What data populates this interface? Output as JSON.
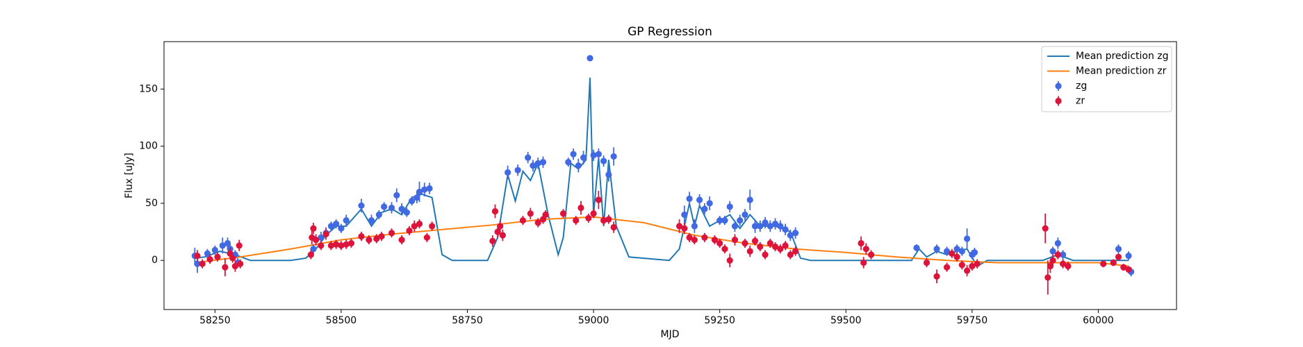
{
  "chart_data": {
    "type": "scatter",
    "title": "GP Regression",
    "xlabel": "MJD",
    "ylabel": "Flux [uJy]",
    "xlim": [
      58149,
      60155
    ],
    "ylim": [
      -43,
      191.5
    ],
    "xticks": [
      58250,
      58500,
      58750,
      59000,
      59250,
      59500,
      59750,
      60000
    ],
    "yticks": [
      0,
      50,
      100,
      150
    ],
    "legend": "upper right",
    "lines": [
      {
        "name": "Mean prediction zg",
        "color": "#1f77b4",
        "x": [
          58210,
          58230,
          58260,
          58290,
          58320,
          58400,
          58430,
          58450,
          58470,
          58490,
          58510,
          58540,
          58560,
          58580,
          58600,
          58620,
          58640,
          58660,
          58680,
          58700,
          58720,
          58790,
          58810,
          58830,
          58845,
          58860,
          58875,
          58890,
          58910,
          58930,
          58940,
          58955,
          58970,
          58985,
          58993,
          59000,
          59010,
          59020,
          59030,
          59045,
          59070,
          59150,
          59170,
          59190,
          59200,
          59210,
          59230,
          59250,
          59270,
          59290,
          59310,
          59330,
          59360,
          59390,
          59410,
          59430,
          59630,
          59645,
          59660,
          59680,
          59700,
          59720,
          59740,
          59760,
          59780,
          59890,
          59920,
          59950,
          60000,
          60060
        ],
        "values": [
          2,
          3,
          8,
          5,
          0,
          0,
          2,
          10,
          22,
          30,
          30,
          45,
          30,
          42,
          45,
          40,
          55,
          58,
          55,
          5,
          0,
          0,
          20,
          75,
          52,
          78,
          70,
          85,
          40,
          5,
          20,
          85,
          80,
          88,
          160,
          40,
          90,
          30,
          88,
          30,
          3,
          0,
          10,
          50,
          30,
          48,
          30,
          35,
          40,
          28,
          40,
          30,
          30,
          25,
          2,
          0,
          0,
          10,
          3,
          8,
          5,
          8,
          10,
          -5,
          0,
          0,
          5,
          0,
          0,
          0
        ]
      },
      {
        "name": "Mean prediction zr",
        "color": "#ff7f0e",
        "x": [
          58210,
          58300,
          58400,
          58500,
          58600,
          58700,
          58800,
          58900,
          59000,
          59100,
          59200,
          59300,
          59400,
          59500,
          59600,
          59700,
          59800,
          59900,
          60000,
          60060
        ],
        "values": [
          -2,
          3,
          10,
          18,
          23,
          27,
          31,
          36,
          38,
          33,
          22,
          15,
          10,
          7,
          3,
          0,
          -2,
          -2,
          -2,
          -5
        ]
      }
    ],
    "series": [
      {
        "name": "zg",
        "color": "#4169e1",
        "x": [
          58210,
          58215,
          58235,
          58250,
          58265,
          58275,
          58280,
          58290,
          58295,
          58445,
          58460,
          58470,
          58480,
          58490,
          58500,
          58510,
          58540,
          58560,
          58575,
          58585,
          58600,
          58610,
          58620,
          58630,
          58640,
          58650,
          58655,
          58665,
          58675,
          58830,
          58850,
          58870,
          58880,
          58890,
          58900,
          58950,
          58960,
          58970,
          58980,
          58993,
          59000,
          59010,
          59020,
          59030,
          59040,
          59180,
          59190,
          59200,
          59210,
          59220,
          59230,
          59250,
          59260,
          59270,
          59280,
          59290,
          59300,
          59310,
          59320,
          59330,
          59340,
          59350,
          59360,
          59370,
          59380,
          59390,
          59400,
          59640,
          59680,
          59700,
          59720,
          59730,
          59740,
          59750,
          59755,
          59910,
          59920,
          59930,
          60040,
          60060,
          60065
        ],
        "values": [
          4,
          -3,
          6,
          9,
          13,
          15,
          10,
          5,
          -2,
          10,
          20,
          24,
          30,
          32,
          28,
          35,
          48,
          35,
          40,
          47,
          46,
          57,
          45,
          42,
          52,
          55,
          60,
          62,
          63,
          77,
          79,
          90,
          83,
          85,
          86,
          86,
          93,
          83,
          90,
          177,
          92,
          93,
          87,
          75,
          91,
          40,
          54,
          30,
          53,
          45,
          50,
          35,
          35,
          47,
          30,
          35,
          40,
          53,
          30,
          30,
          33,
          30,
          32,
          30,
          27,
          22,
          24,
          11,
          10,
          8,
          10,
          8,
          19,
          5,
          7,
          8,
          15,
          5,
          10,
          4,
          -10
        ],
        "errors": [
          7,
          8,
          4,
          4,
          7,
          5,
          5,
          4,
          4,
          4,
          5,
          5,
          4,
          4,
          4,
          5,
          6,
          5,
          4,
          4,
          5,
          6,
          5,
          4,
          4,
          5,
          9,
          6,
          5,
          6,
          5,
          5,
          5,
          5,
          5,
          4,
          5,
          6,
          6,
          2,
          5,
          5,
          5,
          6,
          8,
          8,
          6,
          6,
          5,
          5,
          6,
          4,
          4,
          5,
          5,
          5,
          5,
          9,
          6,
          5,
          5,
          5,
          5,
          5,
          5,
          5,
          5,
          3,
          4,
          4,
          4,
          4,
          9,
          4,
          4,
          4,
          5,
          4,
          4,
          4,
          4
        ]
      },
      {
        "name": "zr",
        "color": "#dc143c",
        "x": [
          58215,
          58225,
          58240,
          58255,
          58270,
          58280,
          58285,
          58290,
          58298,
          58300,
          58440,
          58442,
          58445,
          58450,
          58460,
          58470,
          58480,
          58490,
          58500,
          58510,
          58520,
          58540,
          58555,
          58570,
          58580,
          58600,
          58620,
          58635,
          58645,
          58655,
          58670,
          58680,
          58800,
          58805,
          58810,
          58815,
          58820,
          58860,
          58875,
          58890,
          58900,
          58905,
          58940,
          58965,
          58975,
          58990,
          59000,
          59010,
          59020,
          59030,
          59040,
          59170,
          59180,
          59190,
          59200,
          59220,
          59240,
          59250,
          59260,
          59270,
          59280,
          59300,
          59310,
          59320,
          59330,
          59340,
          59350,
          59360,
          59370,
          59380,
          59390,
          59400,
          59530,
          59535,
          59540,
          59550,
          59660,
          59680,
          59700,
          59710,
          59720,
          59730,
          59740,
          59750,
          59760,
          59895,
          59900,
          59905,
          59910,
          59920,
          59930,
          59940,
          60010,
          60030,
          60040,
          60050,
          60060
        ],
        "values": [
          4,
          -3,
          1,
          3,
          -6,
          6,
          2,
          -5,
          13,
          -3,
          5,
          20,
          28,
          18,
          13,
          23,
          13,
          14,
          13,
          14,
          15,
          21,
          18,
          19,
          21,
          24,
          18,
          26,
          30,
          32,
          20,
          30,
          17,
          43,
          25,
          30,
          22,
          35,
          41,
          33,
          36,
          40,
          41,
          35,
          46,
          37,
          41,
          53,
          35,
          36,
          29,
          30,
          28,
          20,
          18,
          20,
          18,
          15,
          10,
          0,
          18,
          15,
          8,
          17,
          12,
          5,
          15,
          12,
          10,
          13,
          5,
          8,
          15,
          -2,
          10,
          5,
          -2,
          -14,
          -6,
          6,
          3,
          -4,
          -9,
          -5,
          -3,
          28,
          -15,
          -5,
          0,
          5,
          -3,
          -5,
          -3,
          -2,
          3,
          -6,
          -8
        ],
        "errors": [
          5,
          4,
          4,
          4,
          8,
          5,
          4,
          5,
          5,
          4,
          4,
          6,
          5,
          5,
          4,
          5,
          4,
          4,
          4,
          4,
          4,
          4,
          4,
          4,
          4,
          4,
          4,
          4,
          5,
          4,
          4,
          4,
          5,
          6,
          5,
          5,
          5,
          4,
          5,
          4,
          4,
          4,
          4,
          4,
          6,
          4,
          4,
          8,
          4,
          4,
          5,
          6,
          5,
          4,
          4,
          4,
          4,
          4,
          4,
          6,
          5,
          4,
          5,
          4,
          4,
          4,
          4,
          4,
          4,
          4,
          4,
          4,
          6,
          5,
          5,
          4,
          4,
          6,
          4,
          4,
          4,
          4,
          5,
          4,
          4,
          13,
          15,
          6,
          5,
          4,
          4,
          4,
          3,
          3,
          3,
          3,
          3
        ]
      }
    ]
  }
}
